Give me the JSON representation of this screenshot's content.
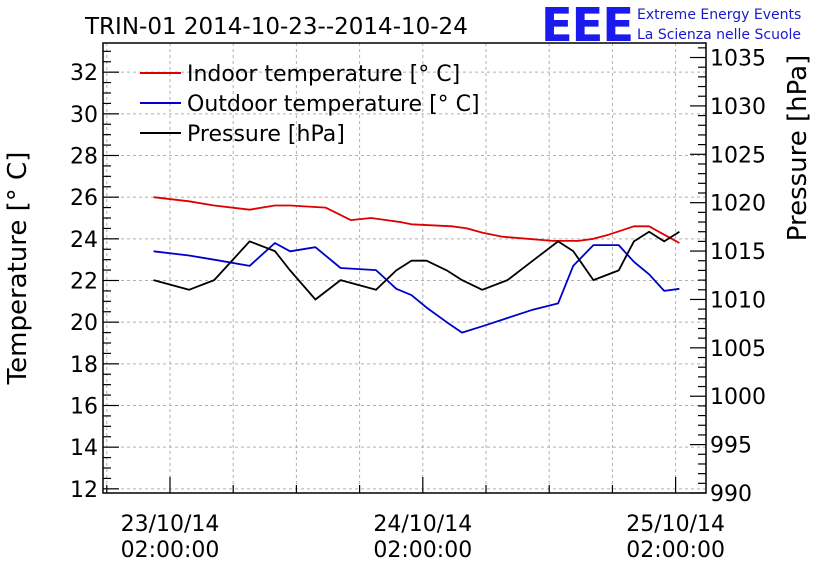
{
  "chart_data": {
    "type": "line",
    "title": "TRIN-01 2014-10-23--2014-10-24",
    "ylabel": "Temperature [° C]",
    "y2label": "Pressure [hPa]",
    "xlabel": "",
    "ylim": [
      11.8,
      33.4
    ],
    "y2lim": [
      990,
      1036.5
    ],
    "xlim": [
      -0.17,
      1.0226
    ],
    "x_unit": "days since 23/10/14 02:00:00",
    "yticks": [
      "12",
      "14",
      "16",
      "18",
      "20",
      "22",
      "24",
      "26",
      "28",
      "30",
      "32"
    ],
    "y2ticks": [
      "990",
      "995",
      "1000",
      "1005",
      "1010",
      "1015",
      "1020",
      "1025",
      "1030",
      "1035"
    ],
    "xticks": [
      {
        "date": "23/10/14",
        "time": "02:00:00",
        "x": -0.0375
      },
      {
        "date": "24/10/14",
        "time": "02:00:00",
        "x": 0.4625
      },
      {
        "date": "25/10/14",
        "time": "02:00:00",
        "x": 0.9625
      }
    ],
    "grid": true,
    "legend_position": "top-left",
    "series": [
      {
        "name": "Indoor temperature [° C]",
        "color": "#dd0000",
        "axis": "left",
        "x": [
          -0.07,
          0.0,
          0.05,
          0.12,
          0.17,
          0.2,
          0.27,
          0.32,
          0.36,
          0.42,
          0.44,
          0.52,
          0.55,
          0.58,
          0.62,
          0.67,
          0.72,
          0.77,
          0.8,
          0.83,
          0.88,
          0.91,
          0.94,
          0.97
        ],
        "values": [
          26.0,
          25.8,
          25.6,
          25.4,
          25.6,
          25.6,
          25.5,
          24.9,
          25.0,
          24.8,
          24.7,
          24.6,
          24.5,
          24.3,
          24.1,
          24.0,
          23.9,
          23.9,
          24.0,
          24.2,
          24.6,
          24.6,
          24.2,
          23.8
        ]
      },
      {
        "name": "Outdoor temperature [° C]",
        "color": "#0000cc",
        "axis": "left",
        "x": [
          -0.07,
          0.0,
          0.05,
          0.12,
          0.17,
          0.2,
          0.25,
          0.3,
          0.37,
          0.41,
          0.44,
          0.47,
          0.51,
          0.54,
          0.58,
          0.63,
          0.68,
          0.73,
          0.76,
          0.8,
          0.85,
          0.88,
          0.91,
          0.94,
          0.97
        ],
        "values": [
          23.4,
          23.2,
          23.0,
          22.7,
          23.8,
          23.4,
          23.6,
          22.6,
          22.5,
          21.6,
          21.3,
          20.7,
          20.0,
          19.5,
          19.8,
          20.2,
          20.6,
          20.9,
          22.7,
          23.7,
          23.7,
          22.9,
          22.3,
          21.5,
          21.6
        ]
      },
      {
        "name": "Pressure [hPa]",
        "color": "#000000",
        "axis": "right",
        "x": [
          -0.07,
          0.0,
          0.05,
          0.12,
          0.17,
          0.2,
          0.25,
          0.3,
          0.37,
          0.41,
          0.44,
          0.47,
          0.51,
          0.54,
          0.58,
          0.63,
          0.68,
          0.73,
          0.76,
          0.8,
          0.85,
          0.88,
          0.91,
          0.94,
          0.97
        ],
        "values": [
          1012,
          1011,
          1012,
          1016,
          1015,
          1013,
          1010,
          1012,
          1011,
          1013,
          1014,
          1014,
          1013,
          1012,
          1011,
          1012,
          1014,
          1016,
          1015,
          1012,
          1013,
          1016,
          1017,
          1016,
          1017
        ]
      }
    ]
  },
  "logo": {
    "mark": "EEE",
    "line1": "Extreme Energy Events",
    "line2": "La Scienza nelle Scuole"
  }
}
